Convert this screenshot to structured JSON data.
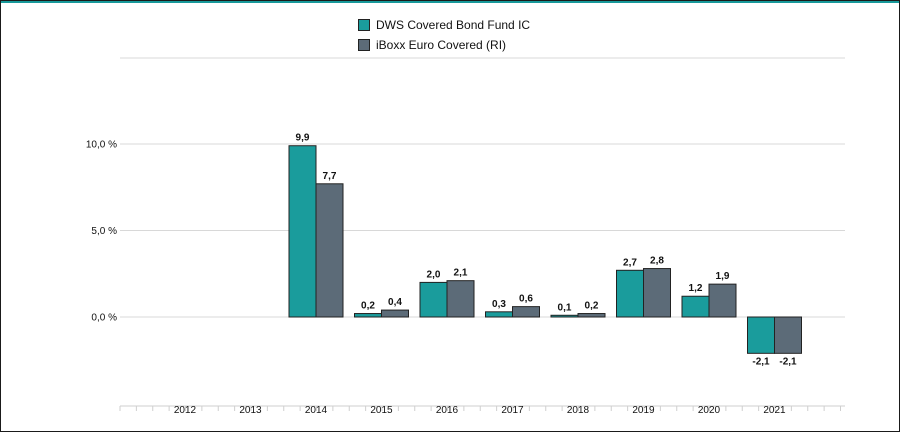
{
  "chart_data": {
    "type": "bar",
    "categories": [
      "2012",
      "2013",
      "2014",
      "2015",
      "2016",
      "2017",
      "2018",
      "2019",
      "2020",
      "2021"
    ],
    "series": [
      {
        "name": "DWS Covered Bond Fund  IC",
        "color": "#1a9c9c",
        "values": [
          null,
          null,
          9.9,
          0.2,
          2.0,
          0.3,
          0.1,
          2.7,
          1.2,
          -2.1
        ],
        "labels": [
          "",
          "",
          "9,9",
          "0,2",
          "2,0",
          "0,3",
          "0,1",
          "2,7",
          "1,2",
          "-2,1"
        ]
      },
      {
        "name": "iBoxx Euro Covered  (RI)",
        "color": "#5c6b78",
        "values": [
          null,
          null,
          7.7,
          0.4,
          2.1,
          0.6,
          0.2,
          2.8,
          1.9,
          -2.1
        ],
        "labels": [
          "",
          "",
          "7,7",
          "0,4",
          "2,1",
          "0,6",
          "0,2",
          "2,8",
          "1,9",
          "-2,1"
        ]
      }
    ],
    "yticks": [
      0,
      5,
      10
    ],
    "ytick_labels": [
      "0,0 %",
      "5,0 %",
      "10,0 %"
    ],
    "ylim": [
      -5,
      15
    ],
    "grid": true,
    "legend_position": "top-center",
    "title": "",
    "xlabel": "",
    "ylabel": ""
  }
}
